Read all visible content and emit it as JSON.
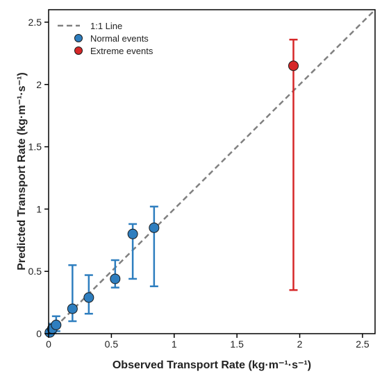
{
  "chart_data": {
    "type": "scatter",
    "title": "",
    "xlabel": "Observed Transport Rate (kg·m⁻¹·s⁻¹)",
    "ylabel": "Predicted Transport Rate (kg·m⁻¹·s⁻¹)",
    "xlim": [
      0,
      2.6
    ],
    "ylim": [
      0,
      2.6
    ],
    "xticks": [
      {
        "value": 0,
        "label": "0"
      },
      {
        "value": 0.5,
        "label": "0.5"
      },
      {
        "value": 1,
        "label": "1"
      },
      {
        "value": 1.5,
        "label": "1.5"
      },
      {
        "value": 2,
        "label": "2"
      },
      {
        "value": 2.5,
        "label": "2.5"
      }
    ],
    "yticks": [
      {
        "value": 0,
        "label": "0"
      },
      {
        "value": 0.5,
        "label": "0.5"
      },
      {
        "value": 1,
        "label": "1"
      },
      {
        "value": 1.5,
        "label": "1.5"
      },
      {
        "value": 2,
        "label": "2"
      },
      {
        "value": 2.5,
        "label": "2.5"
      }
    ],
    "grid": false,
    "legend_position": "top-left",
    "reference_line": {
      "name": "1:1 Line",
      "from": [
        0,
        0
      ],
      "to": [
        2.6,
        2.6
      ],
      "color": "#808080",
      "style": "dashed"
    },
    "series": [
      {
        "name": "Normal events",
        "color": "#2e7ebf",
        "points": [
          {
            "x": 0.01,
            "y": 0.01,
            "ylow": 0.0,
            "yhigh": 0.03
          },
          {
            "x": 0.03,
            "y": 0.04,
            "ylow": 0.01,
            "yhigh": 0.08
          },
          {
            "x": 0.06,
            "y": 0.07,
            "ylow": 0.02,
            "yhigh": 0.14
          },
          {
            "x": 0.19,
            "y": 0.2,
            "ylow": 0.1,
            "yhigh": 0.55
          },
          {
            "x": 0.32,
            "y": 0.29,
            "ylow": 0.16,
            "yhigh": 0.47
          },
          {
            "x": 0.53,
            "y": 0.44,
            "ylow": 0.37,
            "yhigh": 0.59
          },
          {
            "x": 0.67,
            "y": 0.8,
            "ylow": 0.44,
            "yhigh": 0.88
          },
          {
            "x": 0.84,
            "y": 0.85,
            "ylow": 0.38,
            "yhigh": 1.02
          }
        ]
      },
      {
        "name": "Extreme events",
        "color": "#d62728",
        "points": [
          {
            "x": 1.95,
            "y": 2.15,
            "ylow": 0.35,
            "yhigh": 2.36
          }
        ]
      }
    ]
  }
}
